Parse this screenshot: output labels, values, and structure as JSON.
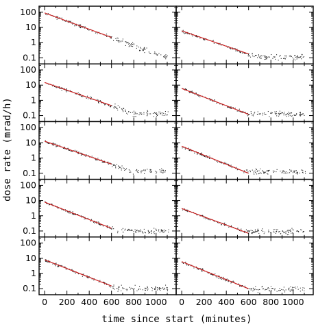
{
  "chart_data": {
    "type": "scatter",
    "layout": {
      "rows": 5,
      "cols": 2
    },
    "xlabel": "time since start (minutes)",
    "ylabel": "dose rate (mrad/h)",
    "xlim": [
      -50,
      1180
    ],
    "ylim": [
      0.04,
      250
    ],
    "y_scale": "log",
    "x_ticks": [
      0,
      200,
      400,
      600,
      800,
      1000
    ],
    "y_ticks": [
      0.1,
      1,
      10,
      100
    ],
    "x_tick_labels": [
      "0",
      "200",
      "400",
      "600",
      "800",
      "1000"
    ],
    "y_tick_labels": [
      "0.1",
      "1",
      "10",
      "100"
    ],
    "fit_color": "#cc2222",
    "point_color": "#222222",
    "panels": [
      {
        "row": 0,
        "col": 0,
        "fit": {
          "x_start": 0,
          "x_end": 600,
          "y_start": 90,
          "y_end": 2.2
        },
        "background": 0.12
      },
      {
        "row": 0,
        "col": 1,
        "fit": {
          "x_start": 0,
          "x_end": 600,
          "y_start": 6,
          "y_end": 0.18
        },
        "background": 0.12
      },
      {
        "row": 1,
        "col": 0,
        "fit": {
          "x_start": 0,
          "x_end": 600,
          "y_start": 15,
          "y_end": 0.45
        },
        "background": 0.14
      },
      {
        "row": 1,
        "col": 1,
        "fit": {
          "x_start": 0,
          "x_end": 600,
          "y_start": 6,
          "y_end": 0.12
        },
        "background": 0.13
      },
      {
        "row": 2,
        "col": 0,
        "fit": {
          "x_start": 0,
          "x_end": 600,
          "y_start": 13,
          "y_end": 0.4
        },
        "background": 0.14
      },
      {
        "row": 2,
        "col": 1,
        "fit": {
          "x_start": 0,
          "x_end": 600,
          "y_start": 6,
          "y_end": 0.1
        },
        "background": 0.13
      },
      {
        "row": 3,
        "col": 0,
        "fit": {
          "x_start": 0,
          "x_end": 600,
          "y_start": 8,
          "y_end": 0.15
        },
        "background": 0.11
      },
      {
        "row": 3,
        "col": 1,
        "fit": {
          "x_start": 0,
          "x_end": 600,
          "y_start": 3,
          "y_end": 0.07
        },
        "background": 0.1
      },
      {
        "row": 4,
        "col": 0,
        "fit": {
          "x_start": 0,
          "x_end": 600,
          "y_start": 8,
          "y_end": 0.15
        },
        "background": 0.11
      },
      {
        "row": 4,
        "col": 1,
        "fit": {
          "x_start": 0,
          "x_end": 600,
          "y_start": 6,
          "y_end": 0.1
        },
        "background": 0.1
      }
    ]
  }
}
